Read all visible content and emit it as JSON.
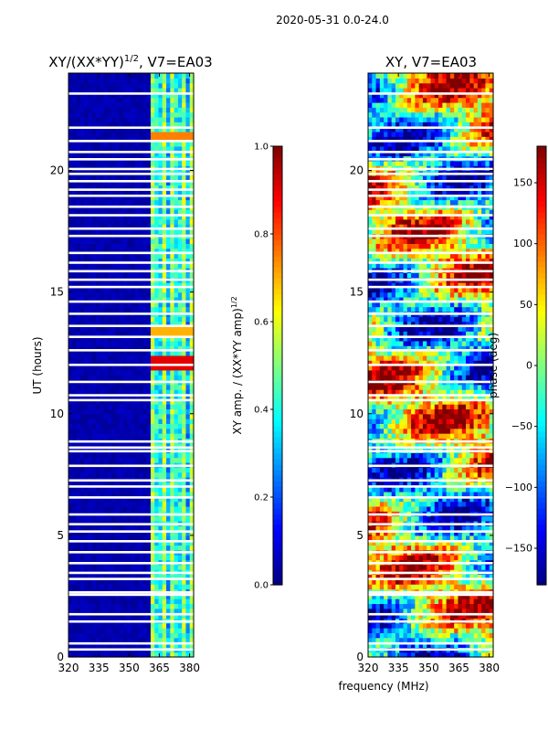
{
  "figure_title": "2020-05-31 0.0-24.0",
  "chart_data": [
    {
      "type": "heatmap",
      "title": "XY/(XX*YY)^{1/2}, V7=EA03",
      "title_main": "XY/(XX*YY)",
      "title_sup": "1/2",
      "title_tail": ", V7=EA03",
      "xlabel": "",
      "ylabel": "UT (hours)",
      "xlim": [
        320,
        382
      ],
      "ylim": [
        0,
        24
      ],
      "xticks": [
        320,
        335,
        350,
        365,
        380
      ],
      "yticks": [
        0,
        5,
        10,
        15,
        20
      ],
      "colorbar": {
        "label": "XY amp. / (XX*YY amp)^{1/2}",
        "label_main": "XY amp. / (XX*YY amp)",
        "label_sup": "1/2",
        "range": [
          0.0,
          1.0
        ],
        "ticks": [
          "0.0",
          "0.2",
          "0.4",
          "0.6",
          "0.8",
          "1.0"
        ],
        "colormap": "jet"
      },
      "flagged_hours": [
        0.3,
        0.55,
        1.45,
        1.75,
        2.55,
        2.65,
        3.2,
        3.45,
        3.85,
        4.3,
        4.75,
        5.15,
        5.45,
        5.85,
        6.55,
        7.0,
        7.25,
        7.85,
        8.45,
        8.6,
        8.85,
        10.55,
        10.75,
        11.3,
        12.0,
        12.6,
        13.15,
        13.6,
        14.1,
        14.6,
        15.2,
        15.5,
        15.85,
        16.2,
        16.6,
        17.3,
        17.6,
        18.15,
        18.5,
        18.95,
        19.2,
        19.55,
        19.85,
        20.05,
        20.45,
        20.75,
        21.2,
        21.75,
        23.15
      ]
    },
    {
      "type": "heatmap",
      "title": "XY, V7=EA03",
      "xlabel": "frequency (MHz)",
      "ylabel": "",
      "xlim": [
        320,
        382
      ],
      "ylim": [
        0,
        24
      ],
      "xticks": [
        320,
        335,
        350,
        365,
        380
      ],
      "yticks": [
        0,
        5,
        10,
        15,
        20
      ],
      "colorbar": {
        "label": "phase (deg)",
        "range": [
          -180,
          180
        ],
        "ticks": [
          "−150",
          "−100",
          "−50",
          "0",
          "50",
          "100",
          "150"
        ],
        "colormap": "jet"
      },
      "flagged_hours": [
        0.3,
        0.55,
        1.45,
        1.75,
        2.55,
        2.65,
        3.2,
        3.45,
        3.85,
        4.3,
        4.75,
        5.15,
        5.45,
        5.85,
        6.55,
        7.0,
        7.25,
        7.85,
        8.45,
        8.6,
        8.85,
        10.55,
        10.75,
        11.3,
        12.0,
        12.6,
        13.15,
        13.6,
        14.1,
        14.6,
        15.2,
        15.5,
        15.85,
        16.2,
        16.6,
        17.3,
        17.6,
        18.15,
        18.5,
        18.95,
        19.2,
        19.55,
        19.85,
        20.05,
        20.45,
        20.75,
        21.2,
        21.75,
        23.15
      ]
    }
  ]
}
